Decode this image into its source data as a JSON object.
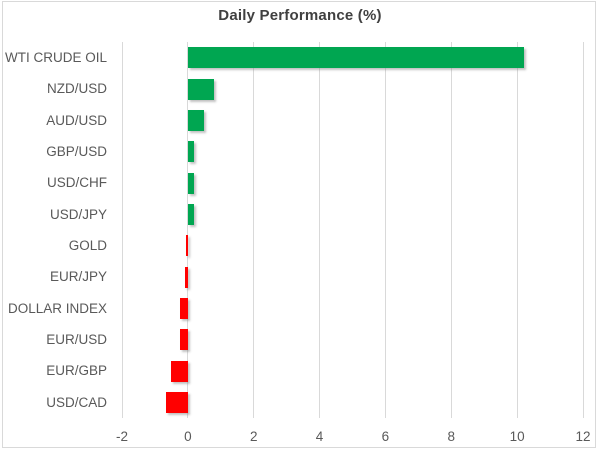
{
  "title": "Daily Performance (%)",
  "colors": {
    "positive": "#00A651",
    "negative": "#FF0000",
    "grid": "#D9D9D9",
    "title_text": "#404040",
    "label_text": "#595959",
    "border": "#D9D9D9"
  },
  "chart_data": {
    "type": "bar",
    "orientation": "horizontal",
    "title": "Daily Performance (%)",
    "xlabel": "",
    "ylabel": "",
    "categories": [
      "WTI CRUDE OIL",
      "NZD/USD",
      "AUD/USD",
      "GBP/USD",
      "USD/CHF",
      "USD/JPY",
      "GOLD",
      "EUR/JPY",
      "DOLLAR INDEX",
      "EUR/USD",
      "EUR/GBP",
      "USD/CAD"
    ],
    "values": [
      10.2,
      0.8,
      0.5,
      0.2,
      0.2,
      0.2,
      -0.05,
      -0.1,
      -0.25,
      -0.25,
      -0.5,
      -0.65
    ],
    "xlim": [
      -2,
      12
    ],
    "xticks": [
      -2,
      0,
      2,
      4,
      6,
      8,
      10,
      12
    ],
    "grid": true,
    "legend": false,
    "positive_color": "#00A651",
    "negative_color": "#FF0000"
  }
}
